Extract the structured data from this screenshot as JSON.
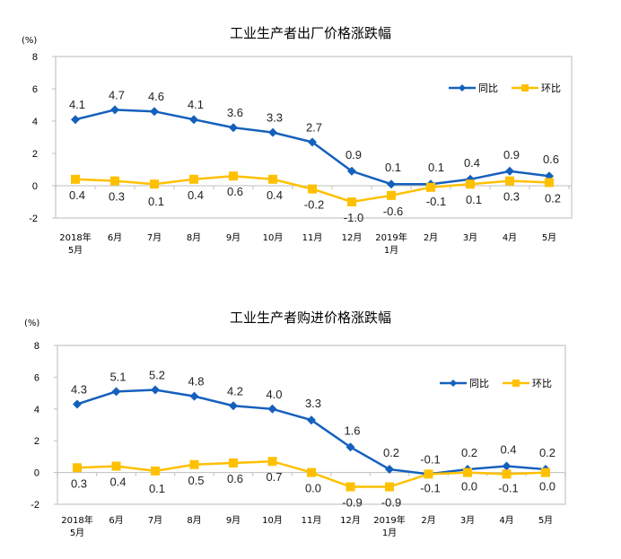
{
  "colors": {
    "yoy": "#1560BD",
    "mom": "#FFC000",
    "frame": "#D0D0D0",
    "axis": "#BFBFBF"
  },
  "chart_data": [
    {
      "type": "line",
      "title": "工业生产者出厂价格涨跌幅",
      "ylabel": "(%)",
      "xlabel": "",
      "ylim": [
        -2,
        8
      ],
      "yticks": [
        "8",
        "6",
        "4",
        "2",
        "0",
        "-2"
      ],
      "ytick_values": [
        8,
        6,
        4,
        2,
        0,
        -2
      ],
      "categories": [
        [
          "2018年",
          "5月"
        ],
        [
          "6月"
        ],
        [
          "7月"
        ],
        [
          "8月"
        ],
        [
          "9月"
        ],
        [
          "10月"
        ],
        [
          "11月"
        ],
        [
          "12月"
        ],
        [
          "2019年",
          "1月"
        ],
        [
          "2月"
        ],
        [
          "3月"
        ],
        [
          "4月"
        ],
        [
          "5月"
        ]
      ],
      "legend_position": "top-right",
      "series": [
        {
          "name": "同比",
          "marker": "diamond",
          "values": [
            4.1,
            4.7,
            4.6,
            4.1,
            3.6,
            3.3,
            2.7,
            0.9,
            0.1,
            0.1,
            0.4,
            0.9,
            0.6
          ],
          "labels": [
            "4.1",
            "4.7",
            "4.6",
            "4.1",
            "3.6",
            "3.3",
            "2.7",
            "0.9",
            "0.1",
            "0.1",
            "0.4",
            "0.9",
            "0.6"
          ]
        },
        {
          "name": "环比",
          "marker": "square",
          "values": [
            0.4,
            0.3,
            0.1,
            0.4,
            0.6,
            0.4,
            -0.2,
            -1.0,
            -0.6,
            -0.1,
            0.1,
            0.3,
            0.2
          ],
          "labels": [
            "0.4",
            "0.3",
            "0.1",
            "0.4",
            "0.6",
            "0.4",
            "-0.2",
            "-1.0",
            "-0.6",
            "-0.1",
            "0.1",
            "0.3",
            "0.2"
          ]
        }
      ]
    },
    {
      "type": "line",
      "title": "工业生产者购进价格涨跌幅",
      "ylabel": "(%)",
      "xlabel": "",
      "ylim": [
        -2,
        8
      ],
      "yticks": [
        "8",
        "6",
        "4",
        "2",
        "0",
        "-2"
      ],
      "ytick_values": [
        8,
        6,
        4,
        2,
        0,
        -2
      ],
      "categories": [
        [
          "2018年",
          "5月"
        ],
        [
          "6月"
        ],
        [
          "7月"
        ],
        [
          "8月"
        ],
        [
          "9月"
        ],
        [
          "10月"
        ],
        [
          "11月"
        ],
        [
          "12月"
        ],
        [
          "2019年",
          "1月"
        ],
        [
          "2月"
        ],
        [
          "3月"
        ],
        [
          "4月"
        ],
        [
          "5月"
        ]
      ],
      "legend_position": "top-right",
      "series": [
        {
          "name": "同比",
          "marker": "diamond",
          "values": [
            4.3,
            5.1,
            5.2,
            4.8,
            4.2,
            4.0,
            3.3,
            1.6,
            0.2,
            -0.1,
            0.2,
            0.4,
            0.2
          ],
          "labels": [
            "4.3",
            "5.1",
            "5.2",
            "4.8",
            "4.2",
            "4.0",
            "3.3",
            "1.6",
            "0.2",
            "-0.1",
            "0.2",
            "0.4",
            "0.2"
          ]
        },
        {
          "name": "环比",
          "marker": "square",
          "values": [
            0.3,
            0.4,
            0.1,
            0.5,
            0.6,
            0.7,
            0.0,
            -0.9,
            -0.9,
            -0.1,
            0.0,
            -0.1,
            0.0
          ],
          "labels": [
            "0.3",
            "0.4",
            "0.1",
            "0.5",
            "0.6",
            "0.7",
            "0.0",
            "-0.9",
            "-0.9",
            "-0.1",
            "0.0",
            "-0.1",
            "0.0"
          ]
        }
      ]
    }
  ]
}
